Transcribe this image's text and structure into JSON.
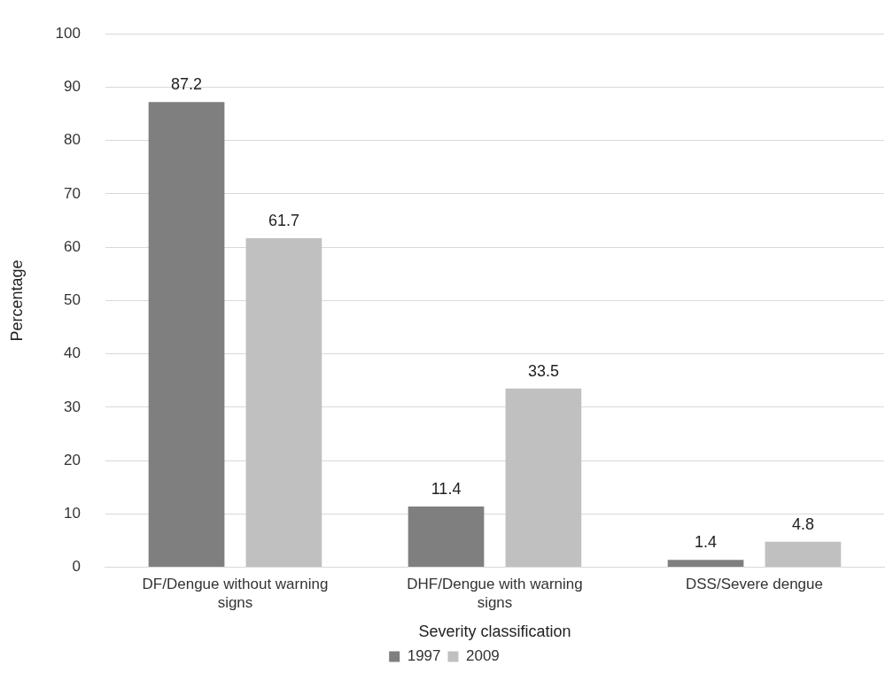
{
  "chart_data": {
    "type": "bar",
    "xlabel": "Severity classification",
    "ylabel": "Percentage",
    "categories": [
      "DF/Dengue without warning signs",
      "DHF/Dengue with warning signs",
      "DSS/Severe dengue"
    ],
    "series": [
      {
        "name": "1997",
        "color": "#7f7f7f",
        "values": [
          87.2,
          11.4,
          1.4
        ]
      },
      {
        "name": "2009",
        "color": "#c0c0c0",
        "values": [
          61.7,
          33.5,
          4.8
        ]
      }
    ],
    "ylim": [
      0,
      100
    ],
    "yticks": [
      0,
      10,
      20,
      30,
      40,
      50,
      60,
      70,
      80,
      90,
      100
    ],
    "grid": "y",
    "legend": "bottom",
    "data_labels": true
  }
}
